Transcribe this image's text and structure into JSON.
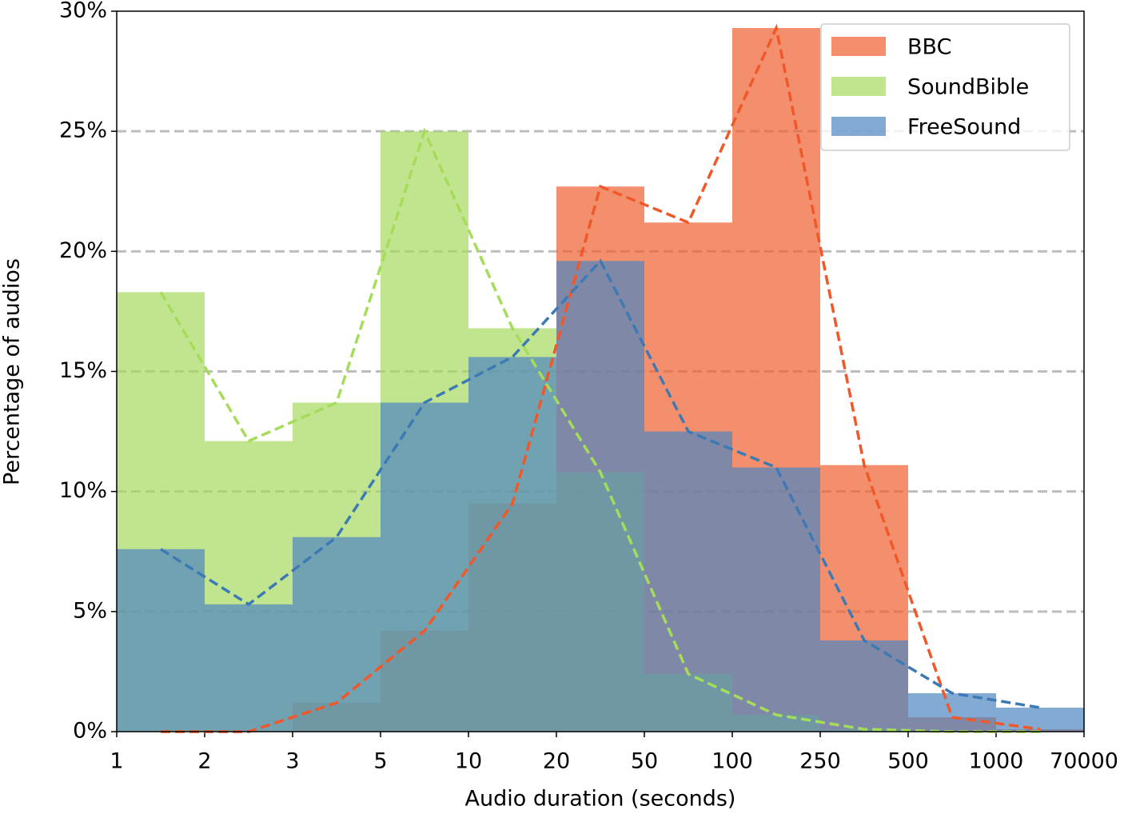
{
  "chart_data": {
    "type": "histogram",
    "xlabel": "Audio duration (seconds)",
    "ylabel": "Percentage of audios",
    "bins": [
      1,
      2,
      3,
      5,
      10,
      20,
      50,
      100,
      250,
      500,
      1000,
      70000
    ],
    "xscale": "ordinal",
    "series": [
      {
        "name": "BBC",
        "color": "#f05f2f",
        "line_color": "#f0582a",
        "values": [
          0,
          0,
          1.2,
          4.2,
          9.5,
          22.7,
          21.2,
          29.3,
          11.1,
          0.6,
          0.1
        ]
      },
      {
        "name": "SoundBible",
        "color": "#a7da60",
        "line_color": "#a5dc5a",
        "values": [
          18.3,
          12.1,
          13.7,
          25.0,
          16.8,
          10.8,
          2.4,
          0.7,
          0.1,
          0,
          0
        ]
      },
      {
        "name": "FreeSound",
        "color": "#4d86c0",
        "line_color": "#3d7ab5",
        "values": [
          7.6,
          5.3,
          8.1,
          13.7,
          15.6,
          19.6,
          12.5,
          11.0,
          3.8,
          1.6,
          1.0
        ]
      }
    ],
    "ylim": [
      0,
      30
    ],
    "yticks": [
      {
        "value": 0,
        "label": "0%"
      },
      {
        "value": 5,
        "label": "5%"
      },
      {
        "value": 10,
        "label": "10%"
      },
      {
        "value": 15,
        "label": "15%"
      },
      {
        "value": 20,
        "label": "20%"
      },
      {
        "value": 25,
        "label": "25%"
      },
      {
        "value": 30,
        "label": "30%"
      }
    ],
    "grid": true,
    "legend": "upper right"
  }
}
